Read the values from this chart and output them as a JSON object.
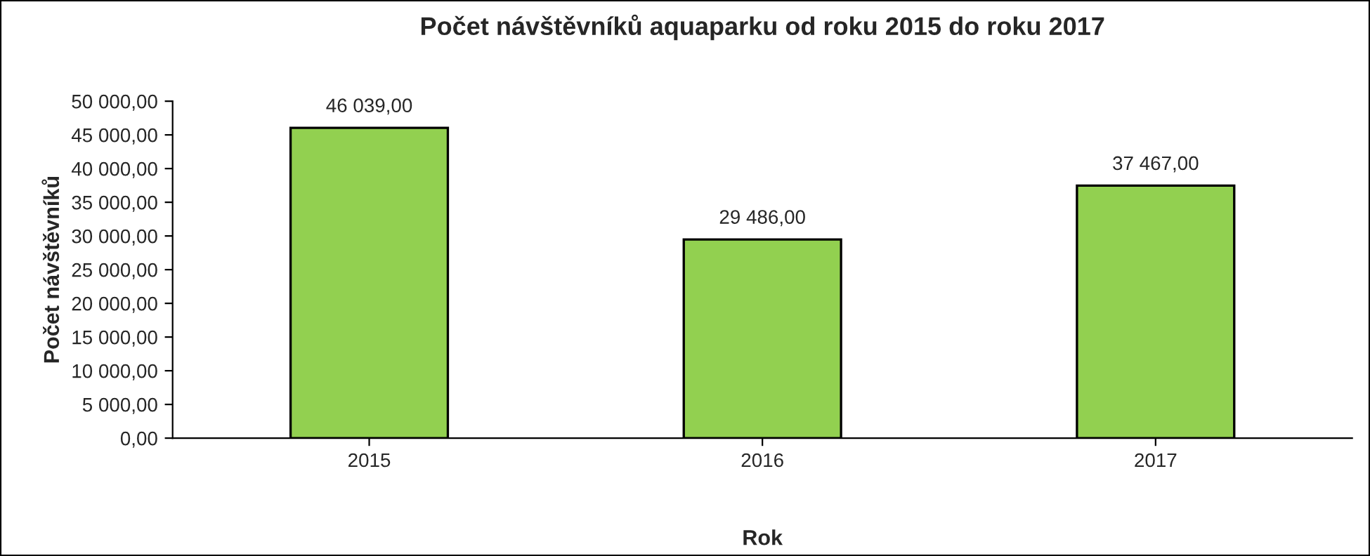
{
  "chart_data": {
    "type": "bar",
    "title": "Počet návštěvníků aquaparku od roku 2015 do roku 2017",
    "xlabel": "Rok",
    "ylabel": "Počet návštěvníků",
    "categories": [
      "2015",
      "2016",
      "2017"
    ],
    "values": [
      46039,
      29486,
      37467
    ],
    "value_labels": [
      "46 039,00",
      "29 486,00",
      "37 467,00"
    ],
    "color": "#92d050",
    "ylim": [
      0,
      50000
    ],
    "yticks": [
      {
        "value": 0,
        "label": "0,00"
      },
      {
        "value": 5000,
        "label": "5 000,00"
      },
      {
        "value": 10000,
        "label": "10 000,00"
      },
      {
        "value": 15000,
        "label": "15 000,00"
      },
      {
        "value": 20000,
        "label": "20 000,00"
      },
      {
        "value": 25000,
        "label": "25 000,00"
      },
      {
        "value": 30000,
        "label": "30 000,00"
      },
      {
        "value": 35000,
        "label": "35 000,00"
      },
      {
        "value": 40000,
        "label": "40 000,00"
      },
      {
        "value": 45000,
        "label": "45 000,00"
      },
      {
        "value": 50000,
        "label": "50 000,00"
      }
    ],
    "grid": false,
    "legend": false
  }
}
